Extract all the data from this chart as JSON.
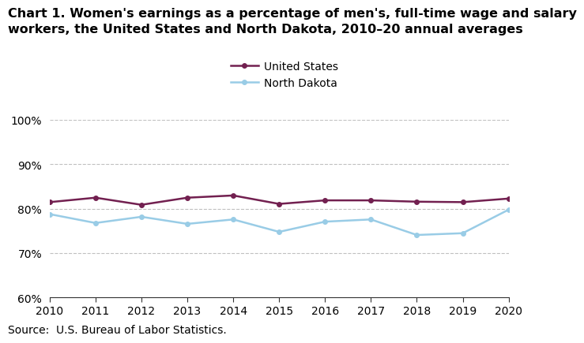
{
  "title_line1": "Chart 1. Women's earnings as a percentage of men's, full-time wage and salary",
  "title_line2": "workers, the United States and North Dakota, 2010–20 annual averages",
  "years": [
    2010,
    2011,
    2012,
    2013,
    2014,
    2015,
    2016,
    2017,
    2018,
    2019,
    2020
  ],
  "us_values": [
    81.5,
    82.5,
    80.9,
    82.5,
    83.0,
    81.1,
    81.9,
    81.9,
    81.6,
    81.5,
    82.3
  ],
  "nd_values": [
    78.8,
    76.8,
    78.2,
    76.6,
    77.6,
    74.8,
    77.1,
    77.6,
    74.1,
    74.5,
    79.8
  ],
  "us_color": "#722050",
  "nd_color": "#99cce6",
  "ylim_min": 60,
  "ylim_max": 100,
  "yticks": [
    60,
    70,
    80,
    90,
    100
  ],
  "legend_labels": [
    "United States",
    "North Dakota"
  ],
  "source_text": "Source:  U.S. Bureau of Labor Statistics.",
  "title_fontsize": 11.5,
  "axis_fontsize": 10,
  "legend_fontsize": 10,
  "source_fontsize": 10,
  "line_width": 1.8,
  "marker_size": 4
}
